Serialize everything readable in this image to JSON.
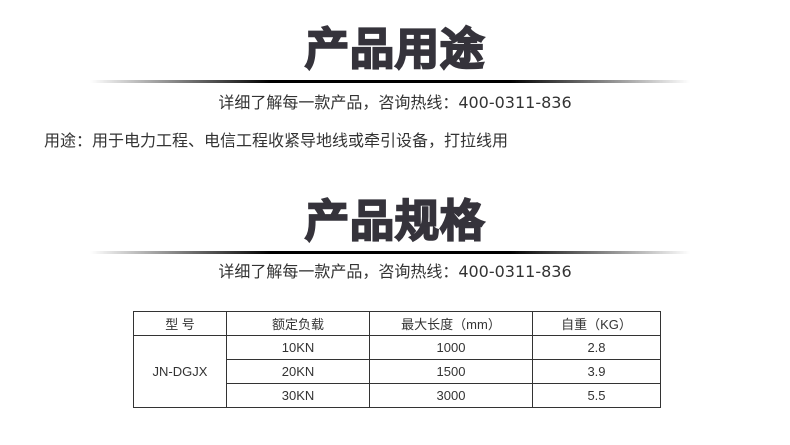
{
  "section1": {
    "title": "产品用途",
    "contact": "详细了解每一款产品，咨询热线：400-0311-836",
    "usage": "用途：用于电力工程、电信工程收紧导地线或牵引设备，打拉线用"
  },
  "section2": {
    "title": "产品规格",
    "contact": "详细了解每一款产品，咨询热线：400-0311-836"
  },
  "table": {
    "headers": [
      "型  号",
      "额定负载",
      "最大长度（mm）",
      "自重（KG）"
    ],
    "model": "JN-DGJX",
    "rows": [
      [
        "10KN",
        "1000",
        "2.8"
      ],
      [
        "20KN",
        "1500",
        "3.9"
      ],
      [
        "30KN",
        "3000",
        "5.5"
      ]
    ]
  }
}
